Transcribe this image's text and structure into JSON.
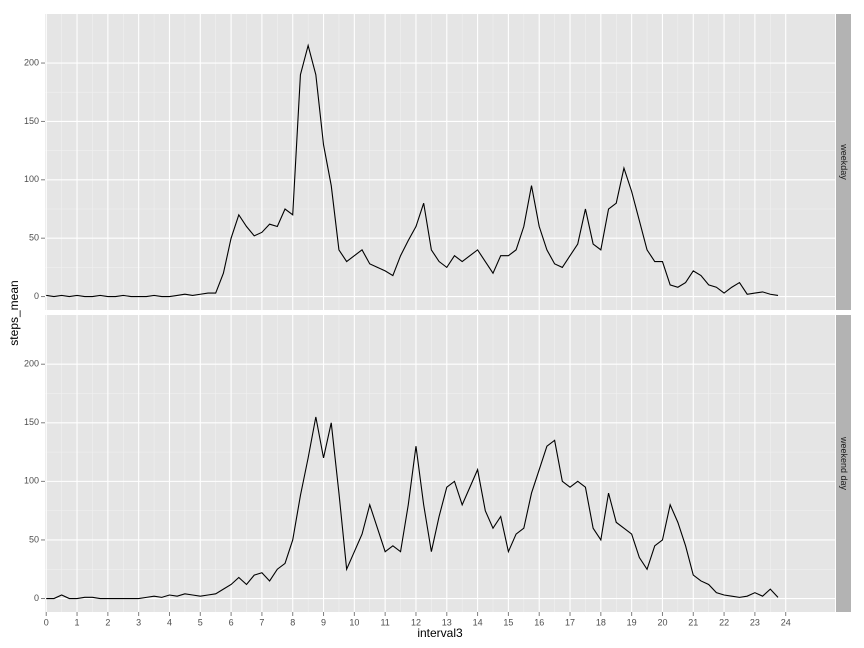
{
  "chart_data": {
    "type": "line",
    "x_label": "interval3",
    "y_label": "steps_mean",
    "facet": true,
    "grid": true,
    "minor_grid": true,
    "x": [
      0,
      0.25,
      0.5,
      0.75,
      1,
      1.25,
      1.5,
      1.75,
      2,
      2.25,
      2.5,
      2.75,
      3,
      3.25,
      3.5,
      3.75,
      4,
      4.25,
      4.5,
      4.75,
      5,
      5.25,
      5.5,
      5.75,
      6,
      6.25,
      6.5,
      6.75,
      7,
      7.25,
      7.5,
      7.75,
      8,
      8.25,
      8.5,
      8.75,
      9,
      9.25,
      9.5,
      9.75,
      10,
      10.25,
      10.5,
      10.75,
      11,
      11.25,
      11.5,
      11.75,
      12,
      12.25,
      12.5,
      12.75,
      13,
      13.25,
      13.5,
      13.75,
      14,
      14.25,
      14.5,
      14.75,
      15,
      15.25,
      15.5,
      15.75,
      16,
      16.25,
      16.5,
      16.75,
      17,
      17.25,
      17.5,
      17.75,
      18,
      18.25,
      18.5,
      18.75,
      19,
      19.25,
      19.5,
      19.75,
      20,
      20.25,
      20.5,
      20.75,
      21,
      21.25,
      21.5,
      21.75,
      22,
      22.25,
      22.5,
      22.75,
      23,
      23.25,
      23.5,
      23.75
    ],
    "series": [
      {
        "name": "weekday",
        "color": "#000000",
        "values": [
          1,
          0,
          1,
          0,
          1,
          0,
          0,
          1,
          0,
          0,
          1,
          0,
          0,
          0,
          1,
          0,
          0,
          1,
          2,
          1,
          2,
          3,
          3,
          20,
          50,
          70,
          60,
          52,
          55,
          62,
          60,
          75,
          70,
          190,
          215,
          190,
          130,
          95,
          40,
          30,
          35,
          40,
          28,
          25,
          22,
          18,
          35,
          48,
          60,
          80,
          40,
          30,
          25,
          35,
          30,
          35,
          40,
          30,
          20,
          35,
          35,
          40,
          60,
          95,
          60,
          40,
          28,
          25,
          35,
          45,
          75,
          45,
          40,
          75,
          80,
          110,
          90,
          65,
          40,
          30,
          30,
          10,
          8,
          12,
          22,
          18,
          10,
          8,
          3,
          8,
          12,
          2,
          3,
          4,
          2,
          1
        ]
      },
      {
        "name": "weekend day",
        "color": "#000000",
        "values": [
          0,
          0,
          3,
          0,
          0,
          1,
          1,
          0,
          0,
          0,
          0,
          0,
          0,
          1,
          2,
          1,
          3,
          2,
          4,
          3,
          2,
          3,
          4,
          8,
          12,
          18,
          12,
          20,
          22,
          15,
          25,
          30,
          50,
          88,
          120,
          155,
          120,
          150,
          90,
          25,
          40,
          55,
          80,
          60,
          40,
          45,
          40,
          80,
          130,
          80,
          40,
          70,
          95,
          100,
          80,
          95,
          110,
          75,
          60,
          70,
          40,
          55,
          60,
          90,
          110,
          130,
          135,
          100,
          95,
          100,
          95,
          60,
          50,
          90,
          65,
          60,
          55,
          35,
          25,
          45,
          50,
          80,
          65,
          45,
          20,
          15,
          12,
          5,
          3,
          2,
          1,
          2,
          5,
          2,
          8,
          1
        ]
      }
    ],
    "xlim": [
      -0.04,
      25.6
    ],
    "xticks": [
      0,
      1,
      2,
      3,
      4,
      5,
      6,
      7,
      8,
      9,
      10,
      11,
      12,
      13,
      14,
      15,
      16,
      17,
      18,
      19,
      20,
      21,
      22,
      23,
      24
    ],
    "ylim": [
      -11.5,
      242
    ],
    "yticks": [
      0,
      50,
      100,
      150,
      200
    ]
  }
}
